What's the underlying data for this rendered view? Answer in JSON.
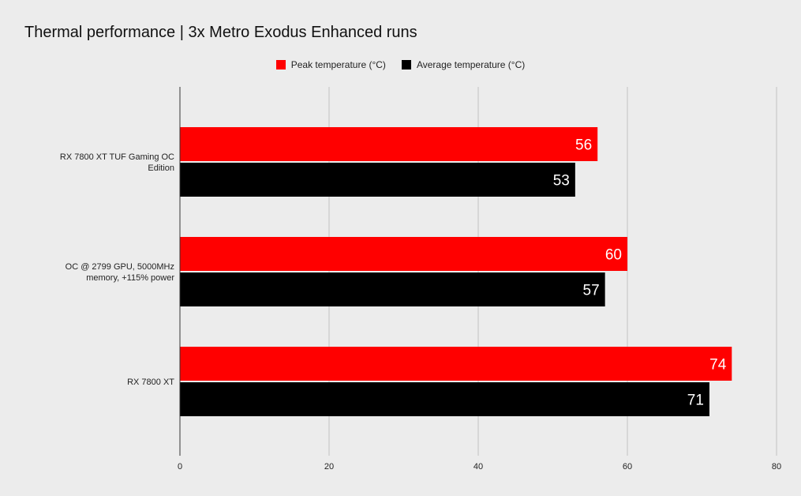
{
  "colors": {
    "background": "#ececec",
    "grid": "#c2c2c2",
    "axis": "#333333"
  },
  "chart_data": {
    "type": "bar",
    "orientation": "horizontal",
    "title": "Thermal performance | 3x Metro Exodus Enhanced runs",
    "xlabel": "",
    "ylabel": "",
    "xlim": [
      0,
      80
    ],
    "xticks": [
      0,
      20,
      40,
      60,
      80
    ],
    "grid": true,
    "legend_position": "top-center",
    "categories": [
      [
        "RX 7800 XT TUF Gaming OC",
        "Edition"
      ],
      [
        "OC @ 2799 GPU, 5000MHz",
        "memory, +115% power"
      ],
      [
        "RX 7800 XT"
      ]
    ],
    "series": [
      {
        "name": "Peak temperature (°C)",
        "color": "#ff0000",
        "values": [
          56,
          60,
          74
        ]
      },
      {
        "name": "Average temperature (°C)",
        "color": "#000000",
        "values": [
          53,
          57,
          71
        ]
      }
    ],
    "data_labels": true
  }
}
